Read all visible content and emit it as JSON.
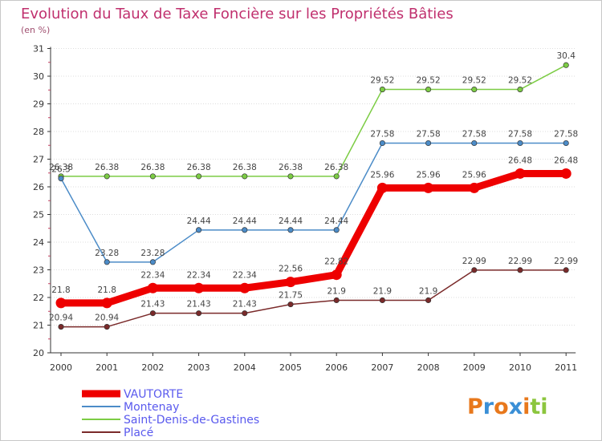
{
  "chart_data": {
    "type": "line",
    "title": "Evolution du Taux de Taxe Foncière sur les Propriétés Bâties",
    "subtitle": "(en %)",
    "categories": [
      "2000",
      "2001",
      "2002",
      "2003",
      "2004",
      "2005",
      "2006",
      "2007",
      "2008",
      "2009",
      "2010",
      "2011"
    ],
    "ylim": [
      20,
      31
    ],
    "yticks": [
      20,
      21,
      22,
      23,
      24,
      25,
      26,
      27,
      28,
      29,
      30,
      31
    ],
    "series": [
      {
        "name": "Saint-Denis-de-Gastines",
        "color": "#7ccc44",
        "values": [
          26.38,
          26.38,
          26.38,
          26.38,
          26.38,
          26.38,
          26.38,
          29.52,
          29.52,
          29.52,
          29.52,
          30.4
        ],
        "labels": [
          "26.38",
          "26.38",
          "26.38",
          "26.38",
          "26.38",
          "26.38",
          "26.38",
          "29.52",
          "29.52",
          "29.52",
          "29.52",
          "30.4"
        ]
      },
      {
        "name": "Montenay",
        "color": "#4c8cc8",
        "values": [
          26.3,
          23.28,
          23.28,
          24.44,
          24.44,
          24.44,
          24.44,
          27.58,
          27.58,
          27.58,
          27.58,
          27.58
        ],
        "labels": [
          "26.3",
          "23.28",
          "23.28",
          "24.44",
          "24.44",
          "24.44",
          "24.44",
          "27.58",
          "27.58",
          "27.58",
          "27.58",
          "27.58"
        ]
      },
      {
        "name": "VAUTORTE",
        "color": "#ee0000",
        "values": [
          21.8,
          21.8,
          22.34,
          22.34,
          22.34,
          22.56,
          22.82,
          25.96,
          25.96,
          25.96,
          26.48,
          26.48
        ],
        "labels": [
          "21.8",
          "21.8",
          "22.34",
          "22.34",
          "22.34",
          "22.56",
          "22.82",
          "25.96",
          "25.96",
          "25.96",
          "26.48",
          "26.48"
        ]
      },
      {
        "name": "Placé",
        "color": "#7a2a2a",
        "values": [
          20.94,
          20.94,
          21.43,
          21.43,
          21.43,
          21.75,
          21.9,
          21.9,
          21.9,
          22.99,
          22.99,
          22.99
        ],
        "labels": [
          "20.94",
          "20.94",
          "21.43",
          "21.43",
          "21.43",
          "21.75",
          "21.9",
          "21.9",
          "21.9",
          "22.99",
          "22.99",
          "22.99"
        ]
      }
    ],
    "legend": [
      "VAUTORTE",
      "Montenay",
      "Saint-Denis-de-Gastines",
      "Placé"
    ],
    "legend_color": "#5a5aee",
    "title_color": "#c0306e",
    "watermark": "Proxiti"
  }
}
